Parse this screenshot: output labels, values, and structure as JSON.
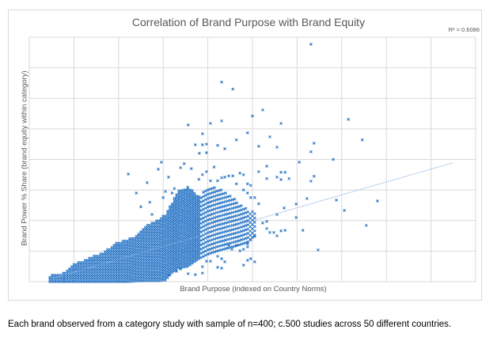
{
  "chart_data": {
    "type": "scatter",
    "title": "Correlation of Brand Purpose with Brand Equity",
    "xlabel": "Brand Purpose (indexed on Country Norms)",
    "ylabel": "Brand Power % Share (brand equity within category)",
    "r_squared_label": "R² = 0.6086",
    "xlim": [
      0,
      10
    ],
    "ylim": [
      0,
      8
    ],
    "grid": true,
    "tick_labels": false,
    "marker": "x",
    "marker_color": "#1f6fc4",
    "gridline_color": "#d9d9d9",
    "trendline": {
      "type": "linear",
      "style": "dotted",
      "color": "#8eb4e3",
      "from": [
        0.5,
        0.1
      ],
      "to": [
        9.49,
        3.89
      ]
    },
    "dense_columns": [
      [
        0.46,
        0.0,
        0.2
      ],
      [
        0.8,
        0.0,
        0.3
      ],
      [
        1.0,
        0.0,
        0.6
      ],
      [
        1.2,
        0.0,
        0.7
      ],
      [
        1.45,
        0.0,
        0.85
      ],
      [
        1.7,
        0.0,
        1.0
      ],
      [
        1.95,
        0.0,
        1.27
      ],
      [
        2.2,
        0.0,
        1.4
      ],
      [
        2.4,
        0.02,
        1.5
      ],
      [
        2.7,
        0.03,
        1.92
      ],
      [
        2.9,
        0.03,
        2.05
      ],
      [
        3.05,
        0.05,
        2.2
      ],
      [
        3.2,
        0.3,
        2.6
      ],
      [
        3.35,
        0.45,
        3.0
      ],
      [
        3.55,
        0.5,
        3.1
      ],
      [
        3.8,
        0.75,
        2.8
      ],
      [
        4.0,
        0.9,
        3.1
      ],
      [
        4.2,
        1.0,
        3.1
      ],
      [
        4.45,
        1.1,
        2.9
      ],
      [
        4.7,
        1.2,
        2.6
      ],
      [
        4.9,
        1.3,
        2.4
      ],
      [
        5.1,
        1.6,
        2.2
      ]
    ],
    "points": [
      [
        6.31,
        7.77
      ],
      [
        4.31,
        6.53
      ],
      [
        4.56,
        6.3
      ],
      [
        5.23,
        5.62
      ],
      [
        5.0,
        5.42
      ],
      [
        7.15,
        5.31
      ],
      [
        4.31,
        5.26
      ],
      [
        3.56,
        5.13
      ],
      [
        4.06,
        5.18
      ],
      [
        5.64,
        5.18
      ],
      [
        4.89,
        4.87
      ],
      [
        3.88,
        4.84
      ],
      [
        5.39,
        4.74
      ],
      [
        7.46,
        4.64
      ],
      [
        4.64,
        4.64
      ],
      [
        6.38,
        4.53
      ],
      [
        3.72,
        4.48
      ],
      [
        3.88,
        4.48
      ],
      [
        3.97,
        4.5
      ],
      [
        4.22,
        4.46
      ],
      [
        4.38,
        4.35
      ],
      [
        5.14,
        4.43
      ],
      [
        5.55,
        4.4
      ],
      [
        6.31,
        4.25
      ],
      [
        3.81,
        4.2
      ],
      [
        3.97,
        4.22
      ],
      [
        2.22,
        3.52
      ],
      [
        2.64,
        3.24
      ],
      [
        2.89,
        3.68
      ],
      [
        2.96,
        3.91
      ],
      [
        3.12,
        3.42
      ],
      [
        3.39,
        3.73
      ],
      [
        3.47,
        3.86
      ],
      [
        3.63,
        3.7
      ],
      [
        6.05,
        3.91
      ],
      [
        6.81,
        4.0
      ],
      [
        5.32,
        3.78
      ],
      [
        5.14,
        3.6
      ],
      [
        5.64,
        3.58
      ],
      [
        5.73,
        3.58
      ],
      [
        5.32,
        3.37
      ],
      [
        5.55,
        3.42
      ],
      [
        5.64,
        3.34
      ],
      [
        5.82,
        3.37
      ],
      [
        6.31,
        3.29
      ],
      [
        6.38,
        3.45
      ],
      [
        6.22,
        2.72
      ],
      [
        5.98,
        2.54
      ],
      [
        5.71,
        2.41
      ],
      [
        5.55,
        2.2
      ],
      [
        5.98,
        2.1
      ],
      [
        6.88,
        2.67
      ],
      [
        7.06,
        2.33
      ],
      [
        7.8,
        2.64
      ],
      [
        7.55,
        1.84
      ],
      [
        6.13,
        1.68
      ],
      [
        6.47,
        1.04
      ],
      [
        5.23,
        1.92
      ],
      [
        5.32,
        1.97
      ],
      [
        5.32,
        1.74
      ],
      [
        5.39,
        1.61
      ],
      [
        5.48,
        1.61
      ],
      [
        5.55,
        1.5
      ],
      [
        5.64,
        1.66
      ],
      [
        5.73,
        1.68
      ],
      [
        5.05,
        1.48
      ],
      [
        4.96,
        1.37
      ],
      [
        4.89,
        1.24
      ],
      [
        4.89,
        1.14
      ],
      [
        4.8,
        0.54
      ],
      [
        4.89,
        0.7
      ],
      [
        4.96,
        0.75
      ],
      [
        5.05,
        0.65
      ],
      [
        4.22,
        0.83
      ],
      [
        4.31,
        0.75
      ],
      [
        4.38,
        0.65
      ],
      [
        4.22,
        0.47
      ],
      [
        4.31,
        0.44
      ],
      [
        3.88,
        0.49
      ],
      [
        3.88,
        0.28
      ],
      [
        3.72,
        0.23
      ],
      [
        3.56,
        0.26
      ],
      [
        3.39,
        0.41
      ],
      [
        3.3,
        0.34
      ],
      [
        3.12,
        0.23
      ],
      [
        3.97,
        0.67
      ],
      [
        4.06,
        0.67
      ],
      [
        4.72,
        1.01
      ],
      [
        4.8,
        1.06
      ],
      [
        4.64,
        1.19
      ],
      [
        4.54,
        1.06
      ],
      [
        4.47,
        1.19
      ],
      [
        3.8,
        3.35
      ],
      [
        3.88,
        3.5
      ],
      [
        3.97,
        3.6
      ],
      [
        4.06,
        3.3
      ],
      [
        4.14,
        3.75
      ],
      [
        4.22,
        3.3
      ],
      [
        4.31,
        3.4
      ],
      [
        4.38,
        3.42
      ],
      [
        4.47,
        3.46
      ],
      [
        4.56,
        3.46
      ],
      [
        4.64,
        3.2
      ],
      [
        4.72,
        3.55
      ],
      [
        4.8,
        3.5
      ],
      [
        4.89,
        3.2
      ],
      [
        4.96,
        3.15
      ],
      [
        4.8,
        3.0
      ],
      [
        4.89,
        2.9
      ],
      [
        4.96,
        2.75
      ],
      [
        5.05,
        2.75
      ],
      [
        5.14,
        2.55
      ],
      [
        2.4,
        2.9
      ],
      [
        2.5,
        2.45
      ],
      [
        2.7,
        2.6
      ],
      [
        2.75,
        2.2
      ],
      [
        3.0,
        2.75
      ],
      [
        3.05,
        2.95
      ],
      [
        3.25,
        3.05
      ],
      [
        3.2,
        2.9
      ]
    ]
  },
  "caption": "Each brand observed from a category study with sample of n=400; c.500 studies across 50 different countries."
}
